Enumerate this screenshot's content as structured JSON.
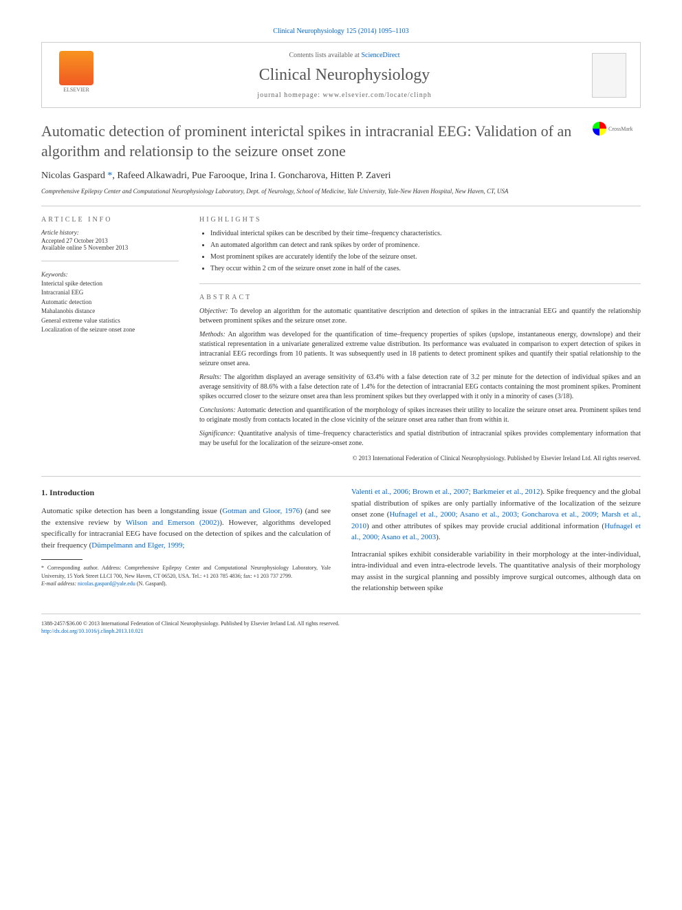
{
  "journal_ref": "Clinical Neurophysiology 125 (2014) 1095–1103",
  "header": {
    "contents_prefix": "Contents lists available at ",
    "contents_link": "ScienceDirect",
    "journal_name": "Clinical Neurophysiology",
    "homepage_prefix": "journal homepage: ",
    "homepage_url": "www.elsevier.com/locate/clinph",
    "elsevier": "ELSEVIER"
  },
  "title": "Automatic detection of prominent interictal spikes in intracranial EEG: Validation of an algorithm and relationsip to the seizure onset zone",
  "crossmark": "CrossMark",
  "authors": {
    "list": "Nicolas Gaspard *, Rafeed Alkawadri, Pue Farooque, Irina I. Goncharova, Hitten P. Zaveri",
    "a1_name": "Nicolas Gaspard ",
    "a1_mark": "*",
    "rest": ", Rafeed Alkawadri, Pue Farooque, Irina I. Goncharova, Hitten P. Zaveri"
  },
  "affiliation": "Comprehensive Epilepsy Center and Computational Neurophysiology Laboratory, Dept. of Neurology, School of Medicine, Yale University, Yale-New Haven Hospital, New Haven, CT, USA",
  "article_info": {
    "head": "ARTICLE INFO",
    "history_title": "Article history:",
    "accepted": "Accepted 27 October 2013",
    "online": "Available online 5 November 2013",
    "keywords_title": "Keywords:",
    "keywords": [
      "Interictal spike detection",
      "Intracranial EEG",
      "Automatic detection",
      "Mahalanobis distance",
      "General extreme value statistics",
      "Localization of the seizure onset zone"
    ]
  },
  "highlights": {
    "head": "HIGHLIGHTS",
    "items": [
      "Individual interictal spikes can be described by their time–frequency characteristics.",
      "An automated algorithm can detect and rank spikes by order of prominence.",
      "Most prominent spikes are accurately identify the lobe of the seizure onset.",
      "They occur within 2 cm of the seizure onset zone in half of the cases."
    ]
  },
  "abstract": {
    "head": "ABSTRACT",
    "objective_label": "Objective:",
    "objective": " To develop an algorithm for the automatic quantitative description and detection of spikes in the intracranial EEG and quantify the relationship between prominent spikes and the seizure onset zone.",
    "methods_label": "Methods:",
    "methods": " An algorithm was developed for the quantification of time–frequency properties of spikes (upslope, instantaneous energy, downslope) and their statistical representation in a univariate generalized extreme value distribution. Its performance was evaluated in comparison to expert detection of spikes in intracranial EEG recordings from 10 patients. It was subsequently used in 18 patients to detect prominent spikes and quantify their spatial relationship to the seizure onset area.",
    "results_label": "Results:",
    "results": " The algorithm displayed an average sensitivity of 63.4% with a false detection rate of 3.2 per minute for the detection of individual spikes and an average sensitivity of 88.6% with a false detection rate of 1.4% for the detection of intracranial EEG contacts containing the most prominent spikes. Prominent spikes occurred closer to the seizure onset area than less prominent spikes but they overlapped with it only in a minority of cases (3/18).",
    "conclusions_label": "Conclusions:",
    "conclusions": " Automatic detection and quantification of the morphology of spikes increases their utility to localize the seizure onset area. Prominent spikes tend to originate mostly from contacts located in the close vicinity of the seizure onset area rather than from within it.",
    "significance_label": "Significance:",
    "significance": " Quantitative analysis of time–frequency characteristics and spatial distribution of intracranial spikes provides complementary information that may be useful for the localization of the seizure-onset zone.",
    "copyright": "© 2013 International Federation of Clinical Neurophysiology. Published by Elsevier Ireland Ltd. All rights reserved."
  },
  "body": {
    "intro_head": "1. Introduction",
    "p1_a": "Automatic spike detection has been a longstanding issue (",
    "p1_link1": "Gotman and Gloor, 1976",
    "p1_b": ") (and see the extensive review by ",
    "p1_link2": "Wilson and Emerson (2002)",
    "p1_c": "). However, algorithms developed specifically for intracranial EEG have focused on the detection of spikes and the calculation of their frequency (",
    "p1_link3": "Dümpelmann and Elger, 1999;",
    "p2_link1": "Valenti et al., 2006; Brown et al., 2007; Barkmeier et al., 2012",
    "p2_a": "). Spike frequency and the global spatial distribution of spikes are only partially informative of the localization of the seizure onset zone (",
    "p2_link2": "Hufnagel et al., 2000; Asano et al., 2003; Goncharova et al., 2009; Marsh et al., 2010",
    "p2_b": ") and other attributes of spikes may provide crucial additional information (",
    "p2_link3": "Hufnagel et al., 2000; Asano et al., 2003",
    "p2_c": ").",
    "p3": "Intracranial spikes exhibit considerable variability in their morphology at the inter-individual, intra-individual and even intra-electrode levels. The quantitative analysis of their morphology may assist in the surgical planning and possibly improve surgical outcomes, although data on the relationship between spike"
  },
  "footnote": {
    "corr": "* Corresponding author. Address: Comprehensive Epilepsy Center and Computational Neurophysiology Laboratory, Yale University, 15 York Street LLCI 700, New Haven, CT 06520, USA. Tel.: +1 203 785 4836; fax: +1 203 737 2799.",
    "email_label": "E-mail address: ",
    "email": "nicolas.gaspard@yale.edu",
    "email_suffix": " (N. Gaspard)."
  },
  "footer": {
    "line1": "1388-2457/$36.00 © 2013 International Federation of Clinical Neurophysiology. Published by Elsevier Ireland Ltd. All rights reserved.",
    "doi": "http://dx.doi.org/10.1016/j.clinph.2013.10.021"
  }
}
